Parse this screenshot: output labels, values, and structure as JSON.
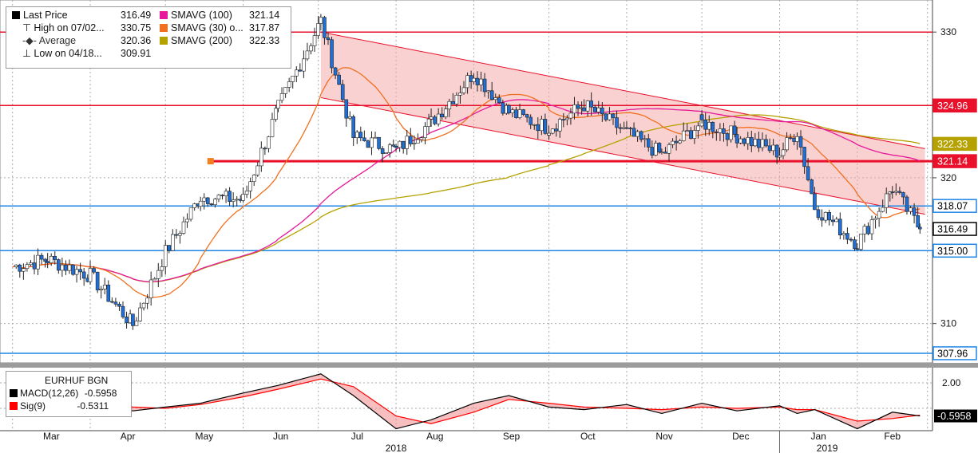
{
  "legend": {
    "last_price": {
      "label": "Last Price",
      "value": "316.49",
      "color": "#000000"
    },
    "high": {
      "label": "High on 07/02...",
      "value": "330.75"
    },
    "average": {
      "label": "Average",
      "value": "320.36"
    },
    "low": {
      "label": "Low on 04/18...",
      "value": "309.91"
    },
    "smavg100": {
      "label": "SMAVG (100)",
      "value": "321.14",
      "color": "#e6199b"
    },
    "smavg30": {
      "label": "SMAVG (30)  o...",
      "value": "317.87",
      "color": "#f07020"
    },
    "smavg200": {
      "label": "SMAVG (200)",
      "value": "322.33",
      "color": "#b5a200"
    }
  },
  "macd_legend": {
    "title": "EURHUF BGN",
    "macd": {
      "label": "MACD(12,26)",
      "value": "-0.5958",
      "color": "#000000"
    },
    "sig": {
      "label": "Sig(9)",
      "value": "-0.5311",
      "color": "#ff0000"
    }
  },
  "chart_data": {
    "type": "candlestick",
    "instrument": "EURHUF BGN",
    "x_months": [
      "Mar",
      "Apr",
      "May",
      "Jun",
      "Jul",
      "Aug",
      "Sep",
      "Oct",
      "Nov",
      "Dec",
      "Jan",
      "Feb"
    ],
    "x_years": [
      "2018",
      "2019"
    ],
    "y_ticks": [
      310,
      320,
      330
    ],
    "ylim": [
      307.3,
      332.2
    ],
    "price_series": [
      {
        "date": "2018-03-01",
        "close": 313.9
      },
      {
        "date": "2018-03-15",
        "close": 314.4
      },
      {
        "date": "2018-04-01",
        "close": 313.3
      },
      {
        "date": "2018-04-18",
        "close": 309.91
      },
      {
        "date": "2018-05-01",
        "close": 314.9
      },
      {
        "date": "2018-05-15",
        "close": 318.7
      },
      {
        "date": "2018-06-01",
        "close": 318.5
      },
      {
        "date": "2018-06-15",
        "close": 324.8
      },
      {
        "date": "2018-07-02",
        "close": 330.75
      },
      {
        "date": "2018-07-15",
        "close": 322.8
      },
      {
        "date": "2018-08-01",
        "close": 321.9
      },
      {
        "date": "2018-08-15",
        "close": 323.8
      },
      {
        "date": "2018-09-01",
        "close": 327.2
      },
      {
        "date": "2018-09-15",
        "close": 324.5
      },
      {
        "date": "2018-10-01",
        "close": 323.4
      },
      {
        "date": "2018-10-15",
        "close": 325.0
      },
      {
        "date": "2018-11-01",
        "close": 323.1
      },
      {
        "date": "2018-11-15",
        "close": 321.6
      },
      {
        "date": "2018-12-01",
        "close": 323.8
      },
      {
        "date": "2018-12-15",
        "close": 322.9
      },
      {
        "date": "2019-01-01",
        "close": 321.7
      },
      {
        "date": "2019-01-08",
        "close": 323.2
      },
      {
        "date": "2019-01-15",
        "close": 318.0
      },
      {
        "date": "2019-02-01",
        "close": 315.5
      },
      {
        "date": "2019-02-15",
        "close": 319.3
      },
      {
        "date": "2019-02-26",
        "close": 316.49
      }
    ],
    "sma100": {
      "start": 313.5,
      "end": 321.14
    },
    "sma30": {
      "end": 317.87
    },
    "sma200": {
      "end": 322.33
    },
    "horizontal_levels": [
      {
        "value": 330.0,
        "color": "#e8102a"
      },
      {
        "value": 324.96,
        "color": "#e8102a",
        "label": "324.96"
      },
      {
        "value": 322.33,
        "color": "#b5a200",
        "label": "322.33"
      },
      {
        "value": 321.14,
        "color": "#e8102a",
        "label": "321.14"
      },
      {
        "value": 318.07,
        "color": "#1f86e6",
        "label": "318.07"
      },
      {
        "value": 316.49,
        "color": "#000000",
        "label": "316.49"
      },
      {
        "value": 315.0,
        "color": "#1f86e6",
        "label": "315.00"
      },
      {
        "value": 307.96,
        "color": "#1f86e6",
        "label": "307.96"
      }
    ],
    "channel": {
      "upper": [
        {
          "date": "2018-07-02",
          "value": 330.0
        },
        {
          "date": "2019-02-28",
          "value": 322.0
        }
      ],
      "lower": [
        {
          "date": "2018-07-02",
          "value": 325.5
        },
        {
          "date": "2019-02-28",
          "value": 317.5
        }
      ]
    },
    "macd": {
      "y_ticks": [
        "2.00"
      ],
      "last": "-0.5958",
      "macd_values": [
        0.7,
        0.8,
        0.5,
        -0.2,
        0.1,
        0.4,
        1.2,
        1.8,
        2.7,
        1.0,
        -1.6,
        -0.9,
        0.4,
        1.0,
        0.1,
        -0.1,
        0.3,
        -0.4,
        0.4,
        -0.2,
        0.2,
        -0.4,
        -0.1,
        -1.6,
        -0.3,
        -0.5958
      ],
      "signal_values": [
        0.6,
        0.7,
        0.6,
        0.1,
        0.0,
        0.3,
        0.9,
        1.5,
        2.3,
        1.7,
        -0.6,
        -1.2,
        -0.3,
        0.7,
        0.4,
        0.1,
        0.0,
        -0.1,
        0.1,
        0.0,
        0.1,
        -0.1,
        -0.1,
        -1.0,
        -0.8,
        -0.5311
      ]
    }
  }
}
